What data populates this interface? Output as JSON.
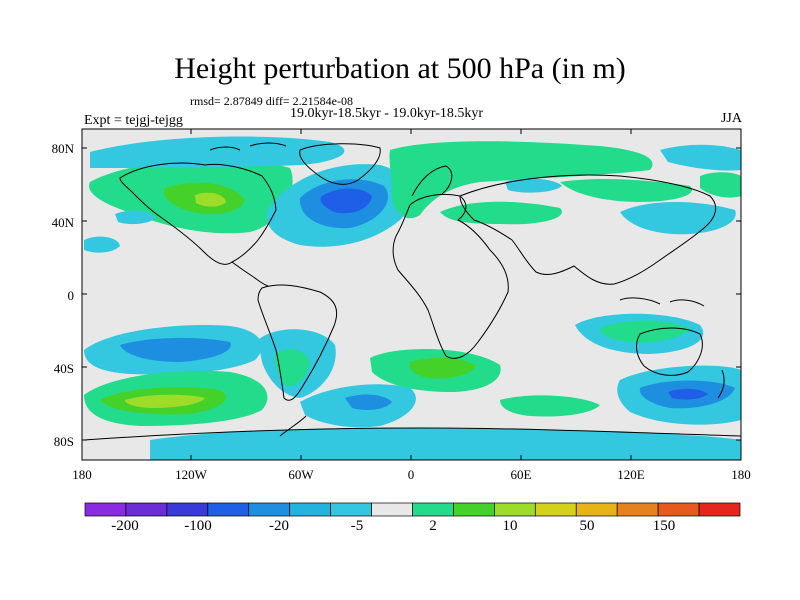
{
  "title": "Height perturbation at 500 hPa (in m)",
  "stats": "rmsd= 2.87849 diff= 2.21584e-08",
  "period": "19.0kyr-18.5kyr - 19.0kyr-18.5kyr",
  "experiment": "Expt = tejgj-tejgg",
  "season": "JJA",
  "lat_labels": [
    "80N",
    "40N",
    "0",
    "40S",
    "80S"
  ],
  "lon_labels": [
    "180",
    "120W",
    "60W",
    "0",
    "60E",
    "120E",
    "180"
  ],
  "colorbar": {
    "labels": [
      "-200",
      "-100",
      "-20",
      "-5",
      "2",
      "10",
      "50",
      "150"
    ],
    "colors": [
      "#8a2be2",
      "#6a2dd6",
      "#3a3ad8",
      "#1f5ee6",
      "#1e8fe0",
      "#22b4dc",
      "#33c8e0",
      "#e8e8e8",
      "#22dc8c",
      "#44d22a",
      "#9edc2a",
      "#d2d21a",
      "#e6b414",
      "#e6821e",
      "#e65a1e",
      "#e6261e"
    ]
  },
  "map_colors": {
    "background": "#e8e8e8",
    "light_blue": "#33c8e0",
    "mid_blue": "#1e8fe0",
    "dark_blue": "#1f5ee6",
    "green": "#22dc8c",
    "bright_green": "#44d22a",
    "yellow_green": "#9edc2a"
  }
}
